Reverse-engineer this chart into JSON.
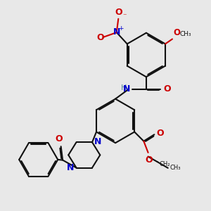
{
  "bg_color": "#e8e8e8",
  "bc": "#111111",
  "nc": "#0000cc",
  "oc": "#cc0000",
  "hc": "#558899",
  "lw": 1.5,
  "doff": 0.05,
  "xlim": [
    0.0,
    9.5
  ],
  "ylim": [
    1.0,
    10.0
  ]
}
